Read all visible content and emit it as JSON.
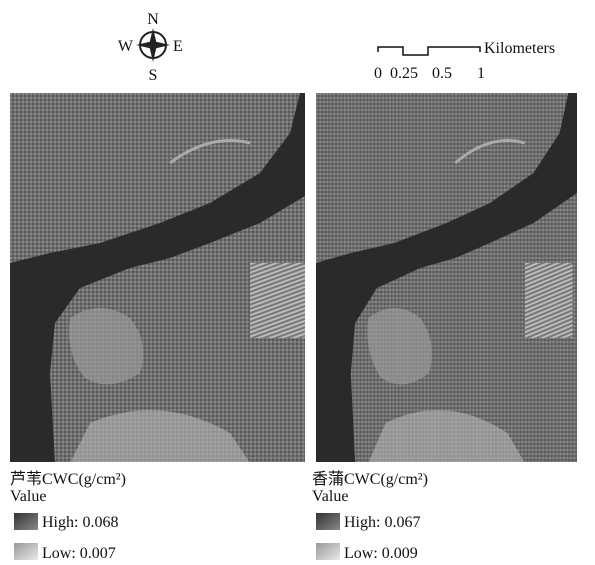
{
  "compass": {
    "north": "N",
    "south": "S",
    "west": "W",
    "east": "E"
  },
  "scale_bar": {
    "unit": "Kilometers",
    "labels": [
      "0",
      "0.25",
      "0.5",
      "1"
    ]
  },
  "panels": [
    {
      "title": "芦苇CWC(g/cm²)",
      "legend_title": "Value",
      "high": "High: 0.068",
      "low": "Low: 0.007"
    },
    {
      "title": "香蒲CWC(g/cm²)",
      "legend_title": "Value",
      "high": "High: 0.067",
      "low": "Low: 0.009"
    }
  ]
}
